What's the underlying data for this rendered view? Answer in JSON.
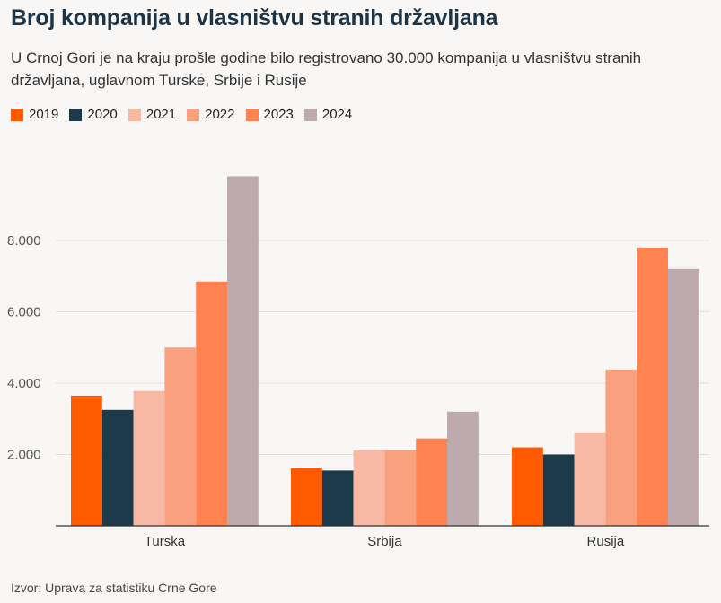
{
  "title": "Broj kompanija u vlasništvu stranih državljana",
  "subtitle": "U Crnoj Gori je na kraju prošle godine bilo registrovano 30.000 kompanija u vlasništvu stranih državljana, uglavnom Turske, Srbije i Rusije",
  "source": "Izvor: Uprava za statistiku Crne Gore",
  "chart_data": {
    "type": "bar",
    "title": "Broj kompanija u vlasništvu stranih državljana",
    "xlabel": "",
    "ylabel": "",
    "categories": [
      "Turska",
      "Srbija",
      "Rusija"
    ],
    "series": [
      {
        "name": "2019",
        "color": "#ff5a00",
        "values": [
          3650,
          1620,
          2200
        ]
      },
      {
        "name": "2020",
        "color": "#1d3a4a",
        "values": [
          3250,
          1550,
          2000
        ]
      },
      {
        "name": "2021",
        "color": "#f8b9a4",
        "values": [
          3780,
          2120,
          2620
        ]
      },
      {
        "name": "2022",
        "color": "#f9a07e",
        "values": [
          5000,
          2120,
          4380
        ]
      },
      {
        "name": "2023",
        "color": "#ff8350",
        "values": [
          6850,
          2450,
          7800
        ]
      },
      {
        "name": "2024",
        "color": "#bcaaaf",
        "values": [
          9800,
          3200,
          7200
        ]
      }
    ],
    "yticks": [
      2000,
      4000,
      6000,
      8000
    ],
    "ytick_labels": [
      "2.000",
      "4.000",
      "6.000",
      "8.000"
    ],
    "ylim": [
      0,
      10000
    ],
    "grid": true,
    "legend": "top-left"
  }
}
